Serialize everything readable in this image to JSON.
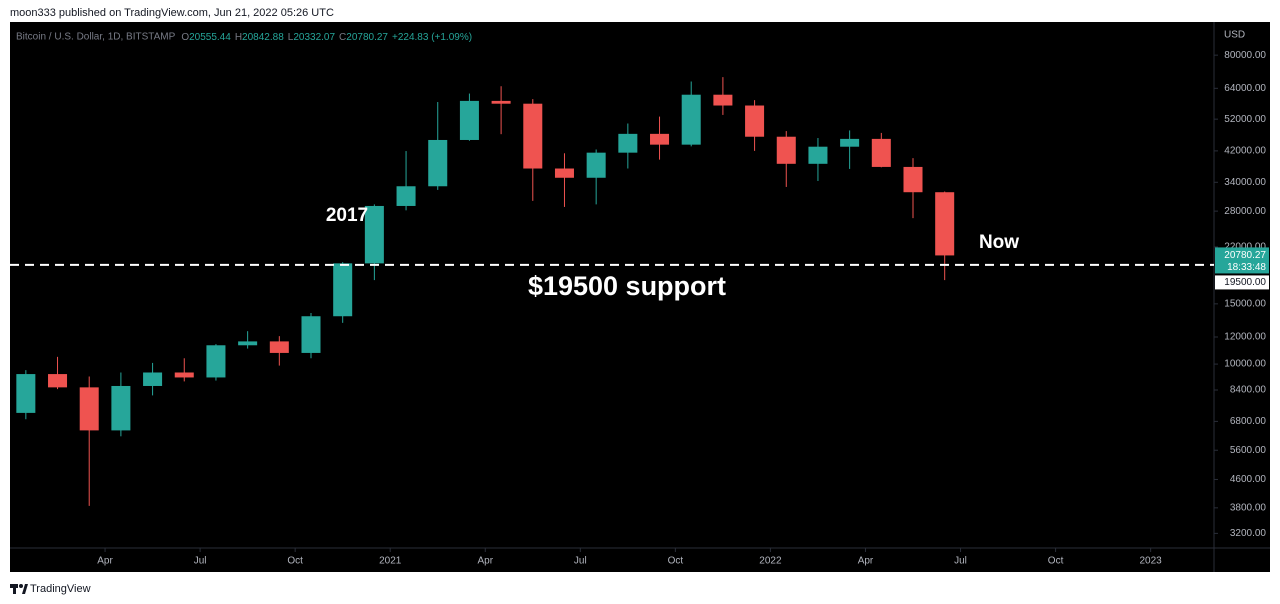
{
  "header": {
    "publisher": "moon333 published on TradingView.com, Jun 21, 2022 05:26 UTC"
  },
  "chart_data": {
    "type": "candlestick",
    "title": "Bitcoin / U.S. Dollar, 1D, BITSTAMP",
    "legend": [
      {
        "key": "O",
        "value": "20555.44"
      },
      {
        "key": "H",
        "value": "20842.88"
      },
      {
        "key": "L",
        "value": "20332.07"
      },
      {
        "key": "C",
        "value": "20780.27"
      }
    ],
    "change": "+224.83 (+1.09%)",
    "currency": "USD",
    "up_color": "#26a69a",
    "down_color": "#ef5350",
    "log_scale": true,
    "x": [
      "2020-01",
      "2020-02",
      "2020-03",
      "2020-04",
      "2020-05",
      "2020-06",
      "2020-07",
      "2020-08",
      "2020-09",
      "2020-10",
      "2020-11",
      "2020-12",
      "2021-01",
      "2021-02",
      "2021-03",
      "2021-04",
      "2021-05",
      "2021-06",
      "2021-07",
      "2021-08",
      "2021-09",
      "2021-10",
      "2021-11",
      "2021-12",
      "2022-01",
      "2022-02",
      "2022-03",
      "2022-04",
      "2022-05",
      "2022-06"
    ],
    "open": [
      7200,
      9350,
      8550,
      6400,
      8630,
      9450,
      9140,
      11350,
      11650,
      10780,
      13800,
      19700,
      28990,
      33100,
      45200,
      58800,
      57700,
      37300,
      35050,
      41500,
      47100,
      43800,
      61300,
      57000,
      46200,
      38500,
      43200,
      45530,
      37700,
      31800
    ],
    "high": [
      9600,
      10500,
      9200,
      9450,
      10080,
      10400,
      11440,
      12480,
      12070,
      14100,
      19860,
      29300,
      41950,
      58350,
      61780,
      64900,
      59500,
      41330,
      42400,
      50500,
      52900,
      67000,
      69000,
      59100,
      47990,
      45800,
      48200,
      47400,
      40000,
      31950
    ],
    "low": [
      6900,
      8450,
      3850,
      6150,
      8100,
      8900,
      8950,
      11100,
      9900,
      10400,
      13200,
      17600,
      28150,
      32300,
      44950,
      47000,
      30000,
      28800,
      29300,
      37300,
      39600,
      43300,
      53500,
      42000,
      32950,
      34300,
      37200,
      37600,
      26700,
      17600
    ],
    "close": [
      9350,
      8550,
      6400,
      8630,
      9450,
      9140,
      11350,
      11650,
      10780,
      13800,
      19700,
      28990,
      33100,
      45200,
      58800,
      57700,
      37300,
      35050,
      41500,
      47100,
      43800,
      61300,
      57000,
      46200,
      38500,
      43200,
      45530,
      37700,
      31800,
      20780
    ],
    "xlim": [
      "2020-01",
      "2023-03"
    ],
    "xticks": [
      {
        "value": "2020-04",
        "label": "Apr"
      },
      {
        "value": "2020-07",
        "label": "Jul"
      },
      {
        "value": "2020-10",
        "label": "Oct"
      },
      {
        "value": "2021-01",
        "label": "2021"
      },
      {
        "value": "2021-04",
        "label": "Apr"
      },
      {
        "value": "2021-07",
        "label": "Jul"
      },
      {
        "value": "2021-10",
        "label": "Oct"
      },
      {
        "value": "2022-01",
        "label": "2022"
      },
      {
        "value": "2022-04",
        "label": "Apr"
      },
      {
        "value": "2022-07",
        "label": "Jul"
      },
      {
        "value": "2022-10",
        "label": "Oct"
      },
      {
        "value": "2023-01",
        "label": "2023"
      }
    ],
    "ylim": [
      2900,
      100000
    ],
    "yticks": [
      {
        "value": 80000,
        "label": "80000.00"
      },
      {
        "value": 64000,
        "label": "64000.00"
      },
      {
        "value": 52000,
        "label": "52000.00"
      },
      {
        "value": 42000,
        "label": "42000.00"
      },
      {
        "value": 34000,
        "label": "34000.00"
      },
      {
        "value": 28000,
        "label": "28000.00"
      },
      {
        "value": 22000,
        "label": "22000.00"
      },
      {
        "value": 15000,
        "label": "15000.00"
      },
      {
        "value": 12000,
        "label": "12000.00"
      },
      {
        "value": 10000,
        "label": "10000.00"
      },
      {
        "value": 8400,
        "label": "8400.00"
      },
      {
        "value": 6800,
        "label": "6800.00"
      },
      {
        "value": 5600,
        "label": "5600.00"
      },
      {
        "value": 4600,
        "label": "4600.00"
      },
      {
        "value": 3800,
        "label": "3800.00"
      },
      {
        "value": 3200,
        "label": "3200.00"
      }
    ],
    "support": {
      "value": 19500,
      "label": "19500.00"
    },
    "last_price": {
      "value": 20780.27,
      "label": "20780.27",
      "countdown": "18:33:48"
    },
    "annotations": [
      "2017",
      "Now",
      "$19500 support"
    ]
  },
  "footer": {
    "brand": "TradingView"
  }
}
